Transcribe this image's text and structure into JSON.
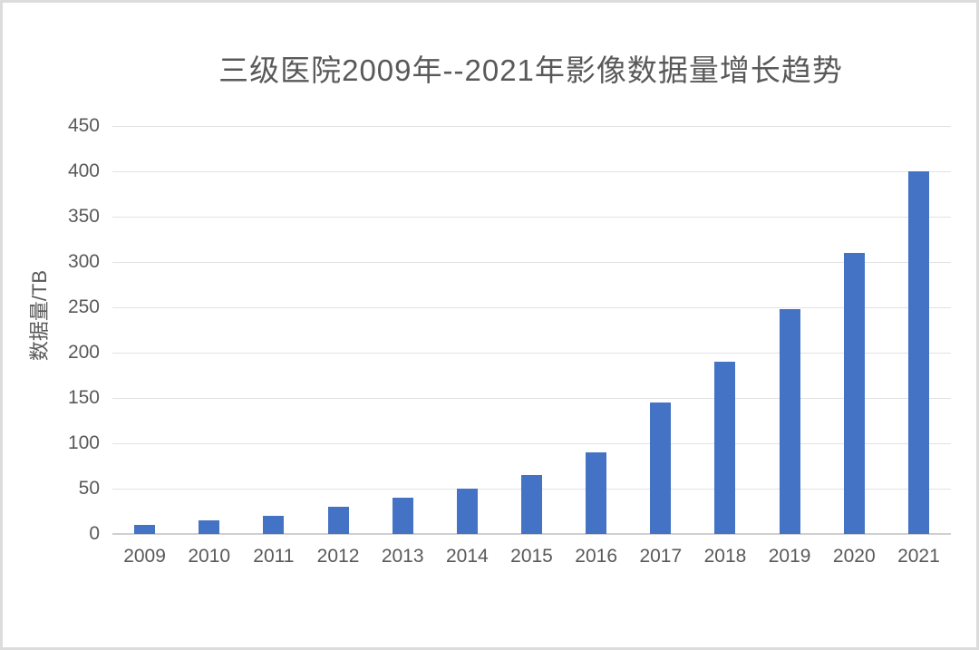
{
  "chart_data": {
    "type": "bar",
    "title": "三级医院2009年--2021年影像数据量增长趋势",
    "xlabel": "",
    "ylabel": "数据量/TB",
    "categories": [
      "2009",
      "2010",
      "2011",
      "2012",
      "2013",
      "2014",
      "2015",
      "2016",
      "2017",
      "2018",
      "2019",
      "2020",
      "2021"
    ],
    "values": [
      10,
      15,
      20,
      30,
      40,
      50,
      65,
      90,
      145,
      190,
      248,
      310,
      400
    ],
    "ylim": [
      0,
      450
    ],
    "ytick_step": 50,
    "grid": "horizontal",
    "legend_position": "none",
    "colors": {
      "bar": "#4472C4",
      "text": "#595959",
      "gridline": "#E2E2E2",
      "axisline": "#D0D0D0",
      "frame_border": "#DCDCDC"
    }
  }
}
